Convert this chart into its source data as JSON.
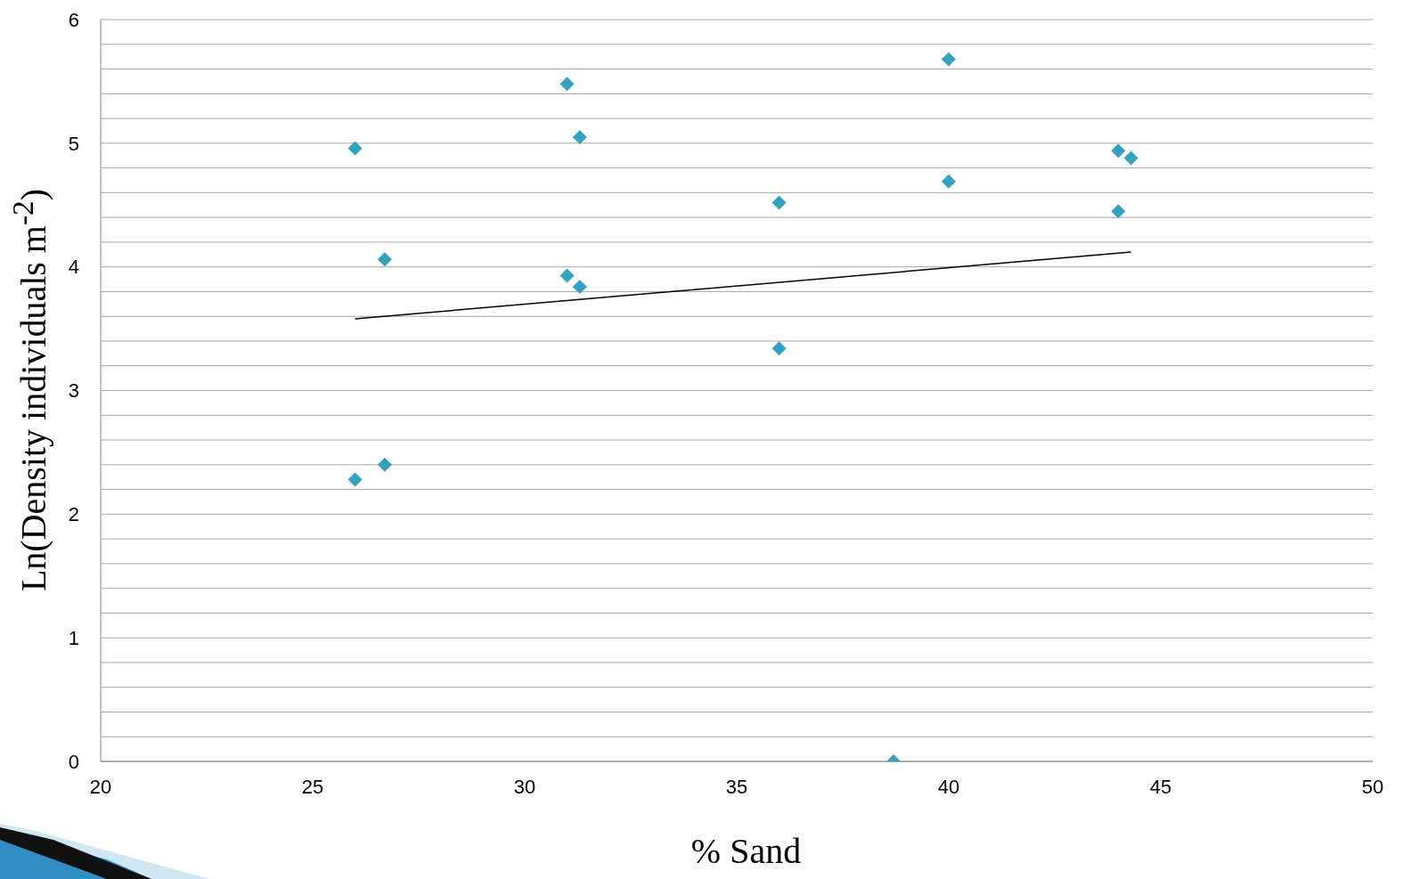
{
  "chart_data": {
    "type": "scatter",
    "xlabel": "% Sand",
    "ylabel": "Ln(Density individuals m$^{-2}$)",
    "xlim": [
      20,
      50
    ],
    "xticks": [
      20,
      25,
      30,
      35,
      40,
      45,
      50
    ],
    "ylim": [
      0,
      6
    ],
    "yticks": [
      0,
      {
        "value": 0.2,
        "label": null
      },
      {
        "value": 0.4,
        "label": null
      },
      {
        "value": 0.6,
        "label": null
      },
      {
        "value": 0.8,
        "label": null
      },
      1,
      {
        "value": 1.2,
        "label": null
      },
      {
        "value": 1.4,
        "label": null
      },
      {
        "value": 1.6,
        "label": null
      },
      {
        "value": 1.8,
        "label": null
      },
      2,
      {
        "value": 2.2,
        "label": null
      },
      {
        "value": 2.4,
        "label": null
      },
      {
        "value": 2.6,
        "label": null
      },
      {
        "value": 2.8,
        "label": null
      },
      3,
      {
        "value": 3.2,
        "label": null
      },
      {
        "value": 3.4,
        "label": null
      },
      {
        "value": 3.6,
        "label": null
      },
      {
        "value": 3.8,
        "label": null
      },
      4,
      {
        "value": 4.2,
        "label": null
      },
      {
        "value": 4.4,
        "label": null
      },
      {
        "value": 4.6,
        "label": null
      },
      {
        "value": 4.8,
        "label": null
      },
      5,
      {
        "value": 5.2,
        "label": null
      },
      {
        "value": 5.4,
        "label": null
      },
      {
        "value": 5.6,
        "label": null
      },
      {
        "value": 5.8,
        "label": null
      },
      6
    ],
    "grid": "y",
    "series": [
      {
        "marker": "diamond",
        "color": "#31a2c0",
        "x": [
          26.0,
          26.0,
          26.7,
          26.7,
          31.0,
          31.0,
          31.3,
          31.3,
          36.0,
          36.0,
          38.7,
          40.0,
          40.0,
          44.0,
          44.0,
          44.3
        ],
        "values": [
          4.96,
          2.28,
          4.06,
          2.4,
          5.48,
          3.93,
          5.05,
          3.84,
          4.52,
          3.34,
          0,
          5.68,
          4.69,
          4.94,
          4.45,
          4.88
        ]
      },
      {
        "type": "line",
        "color": "#000000",
        "x": [
          26.0,
          44.3
        ],
        "values": [
          3.58,
          4.12
        ]
      }
    ]
  }
}
